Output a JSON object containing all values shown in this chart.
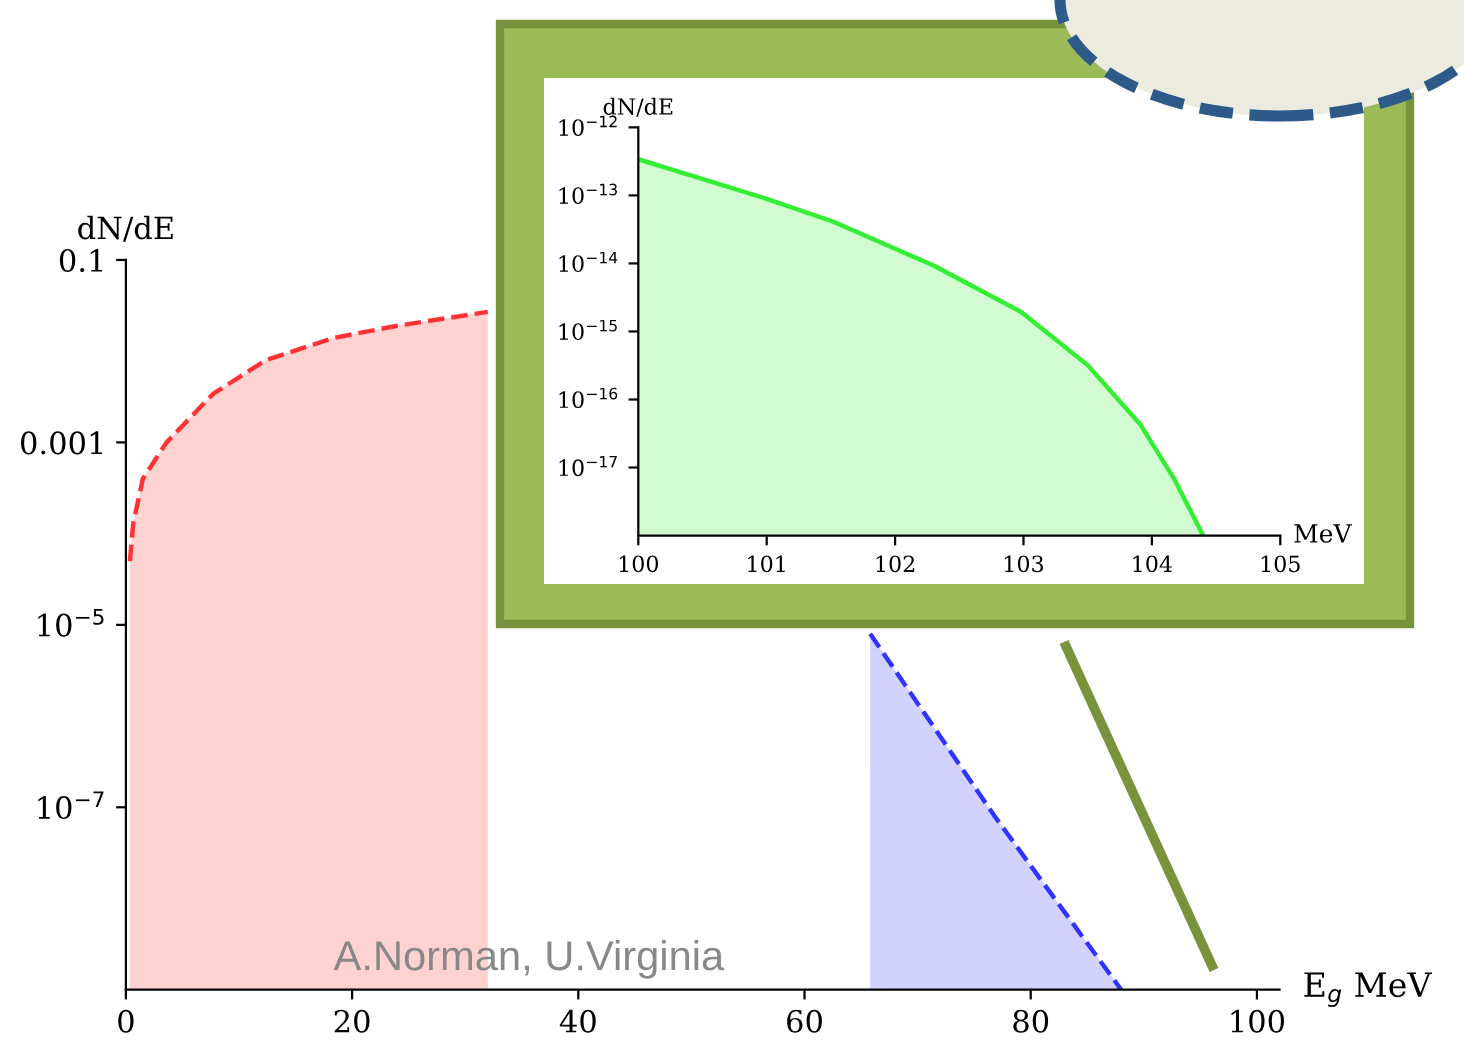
{
  "chart_data": [
    {
      "type": "area",
      "ylabel": "dN/dE",
      "xlabel": "E$_{g}$ MeV",
      "log": "y",
      "line_style": "dashed",
      "marker": "none",
      "grid": false,
      "legend": false,
      "xlim": [
        0,
        102
      ],
      "xticks": [
        0,
        20,
        40,
        60,
        80,
        100
      ],
      "ylim": [
        1e-09,
        0.1
      ],
      "yticks": [
        {
          "value": 0.1,
          "label": "0.1"
        },
        {
          "value": 0.001,
          "label": "0.001"
        },
        {
          "value": 1e-05,
          "label": "10$^{−5}$"
        },
        {
          "value": 1e-07,
          "label": "10$^{−7}$"
        }
      ],
      "series": [
        {
          "color": "#ff3333",
          "x": [
            0.35,
            0.65,
            1.5,
            3.6,
            7.7,
            12.4,
            18.4,
            24,
            32
          ],
          "values": [
            5e-05,
            0.00013,
            0.0004,
            0.001,
            0.0034,
            0.008,
            0.014,
            0.019,
            0.027
          ]
        },
        {
          "color": "#3333ff",
          "x": [
            65.8,
            76.8,
            88
          ],
          "values": [
            8e-06,
            8e-08,
            1e-09
          ]
        }
      ],
      "annotations": [
        "A.Norman, U.Virginia"
      ]
    },
    {
      "type": "area",
      "ylabel": "dN/dE",
      "xlabel": "MeV",
      "log": "y",
      "line_style": "solid",
      "marker": "none",
      "grid": false,
      "legend": false,
      "xlim": [
        100,
        105
      ],
      "xticks": [
        100,
        101,
        102,
        103,
        104,
        105
      ],
      "ylim": [
        1e-18,
        1e-12
      ],
      "yticks": [
        {
          "value": 1e-12,
          "label": "10$^{−12}$"
        },
        {
          "value": 1e-13,
          "label": "10$^{−13}$"
        },
        {
          "value": 1e-14,
          "label": "10$^{−14}$"
        },
        {
          "value": 1e-15,
          "label": "10$^{−15}$"
        },
        {
          "value": 1e-16,
          "label": "10$^{−16}$"
        },
        {
          "value": 1e-17,
          "label": "10$^{−17}$"
        }
      ],
      "series": [
        {
          "color": "#33ee33",
          "x": [
            100,
            101,
            101.52,
            102.3,
            102.98,
            103.5,
            103.91,
            104.17,
            104.4
          ],
          "values": [
            3.4e-13,
            8.9e-14,
            4.1e-14,
            9.3e-15,
            1.95e-15,
            3.2e-16,
            4.3e-17,
            7e-18,
            1e-18
          ]
        }
      ]
    }
  ]
}
